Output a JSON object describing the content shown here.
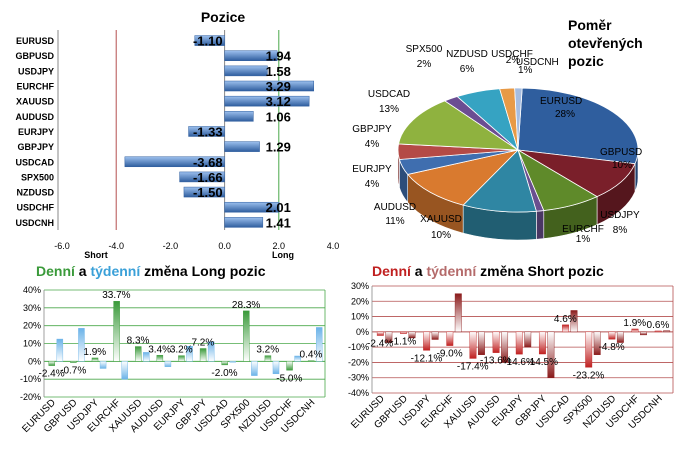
{
  "chart_data": [
    {
      "type": "bar",
      "orientation": "horizontal",
      "title": "Pozice",
      "categories": [
        "EURUSD",
        "GBPUSD",
        "USDJPY",
        "EURCHF",
        "XAUUSD",
        "AUDUSD",
        "EURJPY",
        "GBPJPY",
        "USDCAD",
        "SPX500",
        "NZDUSD",
        "USDCHF",
        "USDCNH"
      ],
      "values": [
        -1.1,
        1.94,
        1.58,
        3.29,
        3.12,
        1.06,
        -1.33,
        1.29,
        -3.68,
        -1.66,
        -1.5,
        2.01,
        1.41
      ],
      "value_labels": [
        "-1.10",
        "1.94",
        "1.58",
        "3.29",
        "3.12",
        "1.06",
        "-1.33",
        "1.29",
        "-3.68",
        "-1.66",
        "-1.50",
        "2.01",
        "1.41"
      ],
      "xlim": [
        -6,
        4
      ],
      "xticks": [
        "-6.0",
        "-4.0",
        "-2.0",
        "0.0",
        "2.0",
        "4.0"
      ],
      "short_label": "Short",
      "long_label": "Long",
      "colors": {
        "bar": "#4f7ec2",
        "short_line": "#b55050",
        "long_line": "#4aa84a"
      }
    },
    {
      "type": "pie",
      "title": "Poměr otevřených pozic",
      "slices": [
        {
          "name": "EURUSD",
          "pct": "28%",
          "value": 28,
          "color": "#2f5e9e"
        },
        {
          "name": "GBPUSD",
          "pct": "10%",
          "value": 10,
          "color": "#7a1f2a"
        },
        {
          "name": "USDJPY",
          "pct": "8%",
          "value": 8,
          "color": "#5f8a2a"
        },
        {
          "name": "EURCHF",
          "pct": "1%",
          "value": 1,
          "color": "#6a4f8f"
        },
        {
          "name": "XAUUSD",
          "pct": "10%",
          "value": 10,
          "color": "#2f86a3"
        },
        {
          "name": "AUDUSD",
          "pct": "11%",
          "value": 11,
          "color": "#d97a2f"
        },
        {
          "name": "EURJPY",
          "pct": "4%",
          "value": 4,
          "color": "#3f6eaf"
        },
        {
          "name": "GBPJPY",
          "pct": "4%",
          "value": 4,
          "color": "#b44a46"
        },
        {
          "name": "USDCAD",
          "pct": "13%",
          "value": 13,
          "color": "#8fb23f"
        },
        {
          "name": "SPX500",
          "pct": "2%",
          "value": 2,
          "color": "#6b4d92"
        },
        {
          "name": "NZDUSD",
          "pct": "6%",
          "value": 6,
          "color": "#36a3c2"
        },
        {
          "name": "USDCHF",
          "pct": "2%",
          "value": 2,
          "color": "#e89a46"
        },
        {
          "name": "USDCNH",
          "pct": "1%",
          "value": 1,
          "color": "#a6bde0"
        }
      ]
    },
    {
      "type": "bar",
      "title_parts": [
        "Denní",
        "a",
        "týdenní",
        "změna Long pozic"
      ],
      "title_colors": [
        "#3a9a3a",
        "#000000",
        "#3aa0d8",
        "#000000"
      ],
      "categories": [
        "EURUSD",
        "GBPUSD",
        "USDJPY",
        "EURCHF",
        "XAUUSD",
        "AUDUSD",
        "EURJPY",
        "GBPJPY",
        "USDCAD",
        "SPX500",
        "NZDUSD",
        "USDCHF",
        "USDCNH"
      ],
      "series": [
        {
          "color": "#3a9a3a",
          "values": [
            -2.4,
            -0.7,
            1.9,
            33.7,
            8.3,
            3.4,
            3.2,
            7.2,
            -2.0,
            28.3,
            3.2,
            -5.0,
            0.4
          ]
        },
        {
          "color": "#6bb3e8",
          "values": [
            12.5,
            18.5,
            -4.0,
            -10.0,
            5.0,
            -3.0,
            8.5,
            11.0,
            -0.5,
            -8.0,
            -7.0,
            3.0,
            19.0
          ]
        }
      ],
      "data_labels": [
        "-2.4%",
        "-0.7%",
        "1.9%",
        "33.7%",
        "8.3%",
        "3.4%",
        "3.2%",
        "7.2%",
        "-2.0%",
        "28.3%",
        "3.2%",
        "-5.0%",
        "0.4%"
      ],
      "ylim": [
        -20,
        40
      ],
      "yticks": [
        "-20%",
        "-10%",
        "0%",
        "10%",
        "20%",
        "30%",
        "40%"
      ]
    },
    {
      "type": "bar",
      "title_parts": [
        "Denní",
        "a",
        "týdenní",
        "změna Short pozic"
      ],
      "title_colors": [
        "#c02020",
        "#000000",
        "#b46a6a",
        "#000000"
      ],
      "categories": [
        "EURUSD",
        "GBPUSD",
        "USDJPY",
        "EURCHF",
        "XAUUSD",
        "AUDUSD",
        "EURJPY",
        "GBPJPY",
        "USDCAD",
        "SPX500",
        "NZDUSD",
        "USDCHF",
        "USDCNH"
      ],
      "series": [
        {
          "color": "#c02020",
          "values": [
            -2.4,
            -1.1,
            -12.1,
            -9.0,
            -17.4,
            -13.6,
            -14.6,
            -14.5,
            4.6,
            -23.2,
            -4.8,
            1.9,
            0.6
          ]
        },
        {
          "color": "#8a1a1a",
          "values": [
            -7.0,
            -4.0,
            -5.0,
            25.0,
            -15.0,
            -20.0,
            -10.0,
            -30.0,
            14.0,
            -15.0,
            -7.0,
            -2.0,
            0.8
          ]
        }
      ],
      "data_labels": [
        "-2.4%",
        "-1.1%",
        "-12.1%",
        "-9.0%",
        "-17.4%",
        "-13.6%",
        "-14.6%",
        "-14.5%",
        "4.6%",
        "-23.2%",
        "-4.8%",
        "1.9%",
        "0.6%"
      ],
      "ylim": [
        -40,
        30
      ],
      "yticks": [
        "-40%",
        "-30%",
        "-20%",
        "-10%",
        "0%",
        "10%",
        "20%",
        "30%"
      ]
    }
  ]
}
